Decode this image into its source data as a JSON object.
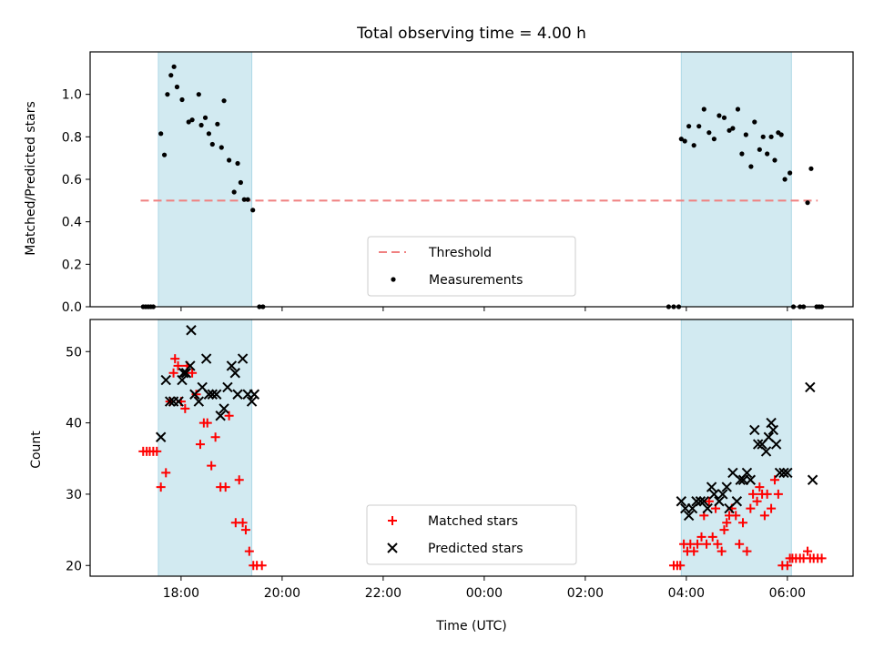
{
  "chart_data": {
    "type": "scatter",
    "title": "Total observing time = 4.00 h",
    "xlabel": "Time (UTC)",
    "x_unit": "hours",
    "x_tick_labels": [
      "18:00",
      "20:00",
      "22:00",
      "00:00",
      "02:00",
      "04:00",
      "06:00"
    ],
    "colors": {
      "shade": "#add8e6",
      "threshold": "#f08080",
      "measurements": "#000000",
      "matched": "#ff0000",
      "predicted": "#000000"
    },
    "shaded_windows": [
      [
        17.55,
        19.4
      ],
      [
        27.9,
        30.08
      ]
    ],
    "panels": [
      {
        "ylabel": "Matched/Predicted stars",
        "ylim": [
          0,
          1.2
        ],
        "yticks": [
          "0.0",
          "0.2",
          "0.4",
          "0.6",
          "0.8",
          "1.0"
        ],
        "threshold": {
          "name": "Threshold",
          "value": 0.5,
          "x_range": [
            17.2,
            30.6
          ]
        },
        "legend_position": "lower center",
        "series": [
          {
            "name": "Measurements",
            "marker": "dot",
            "x": [
              17.25,
              17.3,
              17.35,
              17.4,
              17.45,
              17.6,
              17.67,
              17.73,
              17.8,
              17.86,
              17.92,
              18.02,
              18.15,
              18.22,
              18.35,
              18.4,
              18.48,
              18.55,
              18.62,
              18.72,
              18.8,
              18.85,
              18.95,
              19.05,
              19.12,
              19.18,
              19.25,
              19.32,
              19.42,
              19.55,
              19.62,
              27.65,
              27.75,
              27.85,
              27.9,
              27.97,
              28.05,
              28.15,
              28.25,
              28.35,
              28.45,
              28.55,
              28.65,
              28.75,
              28.85,
              28.92,
              29.02,
              29.1,
              29.18,
              29.28,
              29.35,
              29.45,
              29.52,
              29.6,
              29.68,
              29.75,
              29.82,
              29.88,
              29.95,
              30.05,
              30.12,
              30.25,
              30.32,
              30.4,
              30.47,
              30.58,
              30.63,
              30.68
            ],
            "y": [
              0.0,
              0.0,
              0.0,
              0.0,
              0.0,
              0.815,
              0.715,
              1.0,
              1.09,
              1.13,
              1.035,
              0.975,
              0.87,
              0.88,
              1.0,
              0.855,
              0.89,
              0.815,
              0.765,
              0.86,
              0.75,
              0.97,
              0.69,
              0.54,
              0.675,
              0.585,
              0.505,
              0.505,
              0.455,
              0.0,
              0.0,
              0.0,
              0.0,
              0.0,
              0.79,
              0.78,
              0.85,
              0.76,
              0.85,
              0.93,
              0.82,
              0.79,
              0.9,
              0.89,
              0.83,
              0.84,
              0.93,
              0.72,
              0.81,
              0.66,
              0.87,
              0.74,
              0.8,
              0.72,
              0.8,
              0.69,
              0.82,
              0.81,
              0.6,
              0.63,
              0.0,
              0.0,
              0.0,
              0.49,
              0.65,
              0.0,
              0.0,
              0.0
            ]
          }
        ]
      },
      {
        "ylabel": "Count",
        "ylim": [
          18.5,
          54.5
        ],
        "yticks": [
          "20",
          "30",
          "40",
          "50"
        ],
        "legend_position": "lower center",
        "series": [
          {
            "name": "Matched stars",
            "marker": "plus",
            "x": [
              17.25,
              17.32,
              17.38,
              17.45,
              17.52,
              17.6,
              17.7,
              17.78,
              17.85,
              17.88,
              17.94,
              18.0,
              18.08,
              18.12,
              18.22,
              18.3,
              18.38,
              18.45,
              18.52,
              18.6,
              18.68,
              18.78,
              18.88,
              18.95,
              19.08,
              19.15,
              19.22,
              19.28,
              19.35,
              19.43,
              19.5,
              19.6,
              27.75,
              27.82,
              27.88,
              27.95,
              28.02,
              28.08,
              28.15,
              28.22,
              28.3,
              28.35,
              28.4,
              28.45,
              28.52,
              28.58,
              28.62,
              28.7,
              28.75,
              28.8,
              28.85,
              28.9,
              28.98,
              29.05,
              29.12,
              29.2,
              29.27,
              29.32,
              29.4,
              29.45,
              29.5,
              29.55,
              29.6,
              29.68,
              29.75,
              29.82,
              29.9,
              30.0,
              30.05,
              30.1,
              30.17,
              30.25,
              30.32,
              30.4,
              30.45,
              30.52,
              30.6,
              30.68
            ],
            "y": [
              36,
              36,
              36,
              36,
              36,
              31,
              33,
              43,
              47,
              49,
              48,
              43,
              42,
              48,
              47,
              44,
              37,
              40,
              40,
              34,
              38,
              31,
              31,
              41,
              26,
              32,
              26,
              25,
              22,
              20,
              20,
              20,
              20,
              20,
              20,
              23,
              22,
              23,
              22,
              23,
              24,
              27,
              23,
              29,
              24,
              28,
              23,
              22,
              25,
              26,
              27,
              28,
              27,
              23,
              26,
              22,
              28,
              30,
              29,
              31,
              30,
              27,
              30,
              28,
              32,
              30,
              20,
              20,
              21,
              21,
              21,
              21,
              21,
              22,
              21,
              21,
              21,
              21
            ]
          },
          {
            "name": "Predicted stars",
            "marker": "x",
            "x": [
              17.6,
              17.7,
              17.78,
              17.85,
              17.95,
              18.02,
              18.05,
              18.1,
              18.18,
              18.2,
              18.27,
              18.35,
              18.42,
              18.5,
              18.55,
              18.62,
              18.7,
              18.78,
              18.85,
              18.92,
              19.0,
              19.07,
              19.12,
              19.22,
              19.32,
              19.4,
              19.45,
              27.9,
              27.98,
              28.05,
              28.12,
              28.2,
              28.28,
              28.35,
              28.42,
              28.5,
              28.55,
              28.65,
              28.72,
              28.8,
              28.85,
              28.92,
              29.0,
              29.07,
              29.13,
              29.2,
              29.27,
              29.35,
              29.42,
              29.5,
              29.58,
              29.63,
              29.68,
              29.72,
              29.78,
              29.85,
              29.93,
              30.0,
              30.45,
              30.5
            ],
            "y": [
              38,
              46,
              43,
              43,
              43,
              46,
              47,
              47,
              48,
              53,
              44,
              43,
              45,
              49,
              44,
              44,
              44,
              41,
              42,
              45,
              48,
              47,
              44,
              49,
              44,
              43,
              44,
              29,
              28,
              27,
              28,
              29,
              29,
              29,
              28,
              31,
              30,
              29,
              30,
              31,
              28,
              33,
              29,
              32,
              32,
              33,
              32,
              39,
              37,
              37,
              36,
              38,
              40,
              39,
              37,
              33,
              33,
              33,
              45,
              32
            ]
          }
        ]
      }
    ]
  }
}
